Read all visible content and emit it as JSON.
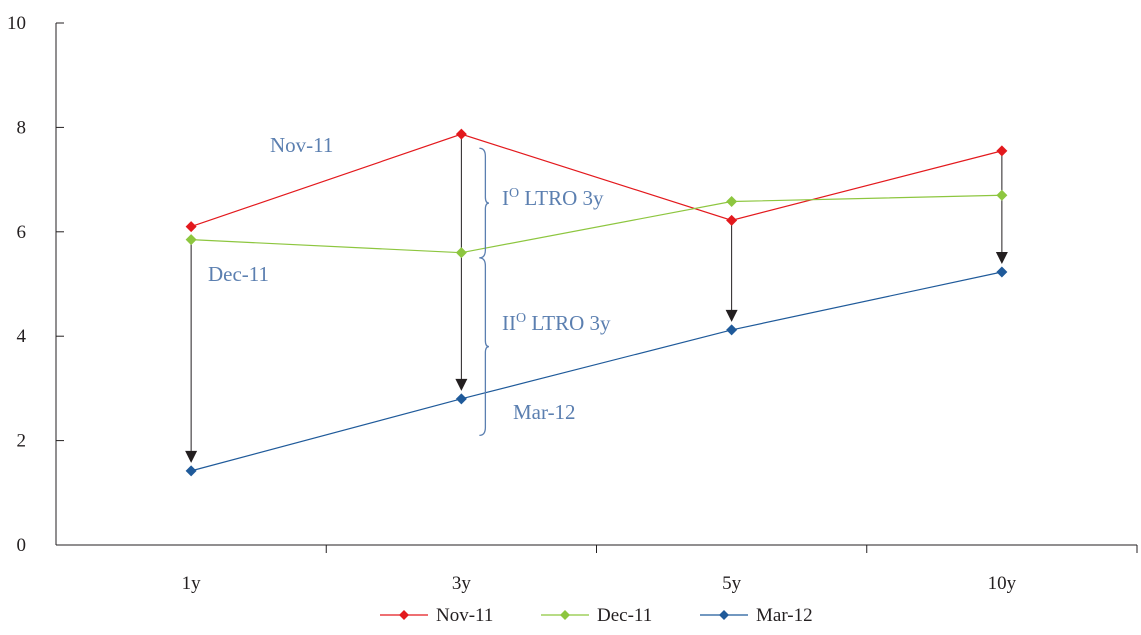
{
  "chart_data": {
    "type": "line",
    "categories": [
      "1y",
      "3y",
      "5y",
      "10y"
    ],
    "ylim": [
      0,
      10
    ],
    "yticks": [
      0,
      2,
      4,
      6,
      8,
      10
    ],
    "grid": false,
    "legend_position": "bottom",
    "series": [
      {
        "name": "Nov-11",
        "color": "#e3191d",
        "values": [
          6.1,
          7.87,
          6.22,
          7.55
        ]
      },
      {
        "name": "Dec-11",
        "color": "#8dc63f",
        "values": [
          5.85,
          5.6,
          6.58,
          6.7
        ]
      },
      {
        "name": "Mar-12",
        "color": "#1f5a9a",
        "values": [
          1.42,
          2.8,
          4.12,
          5.23
        ]
      }
    ],
    "annotations": {
      "nov_label": "Nov-11",
      "dec_label": "Dec-11",
      "mar_label": "Mar-12",
      "ltro1_roman": "I",
      "ltro1_super": "O",
      "ltro1_text": " LTRO 3y",
      "ltro2_roman": "II",
      "ltro2_super": "O",
      "ltro2_text": " LTRO 3y",
      "color": "#5b7fb0",
      "brace_upper_range": [
        5.5,
        7.6
      ],
      "brace_lower_range": [
        2.1,
        5.5
      ]
    },
    "arrows": [
      {
        "category": "1y",
        "from": 5.85,
        "to": 1.42
      },
      {
        "category": "3y",
        "from": 7.87,
        "to": 2.8
      },
      {
        "category": "5y",
        "from": 6.22,
        "to": 4.12
      },
      {
        "category": "10y",
        "from": 7.55,
        "to": 5.23
      }
    ]
  }
}
